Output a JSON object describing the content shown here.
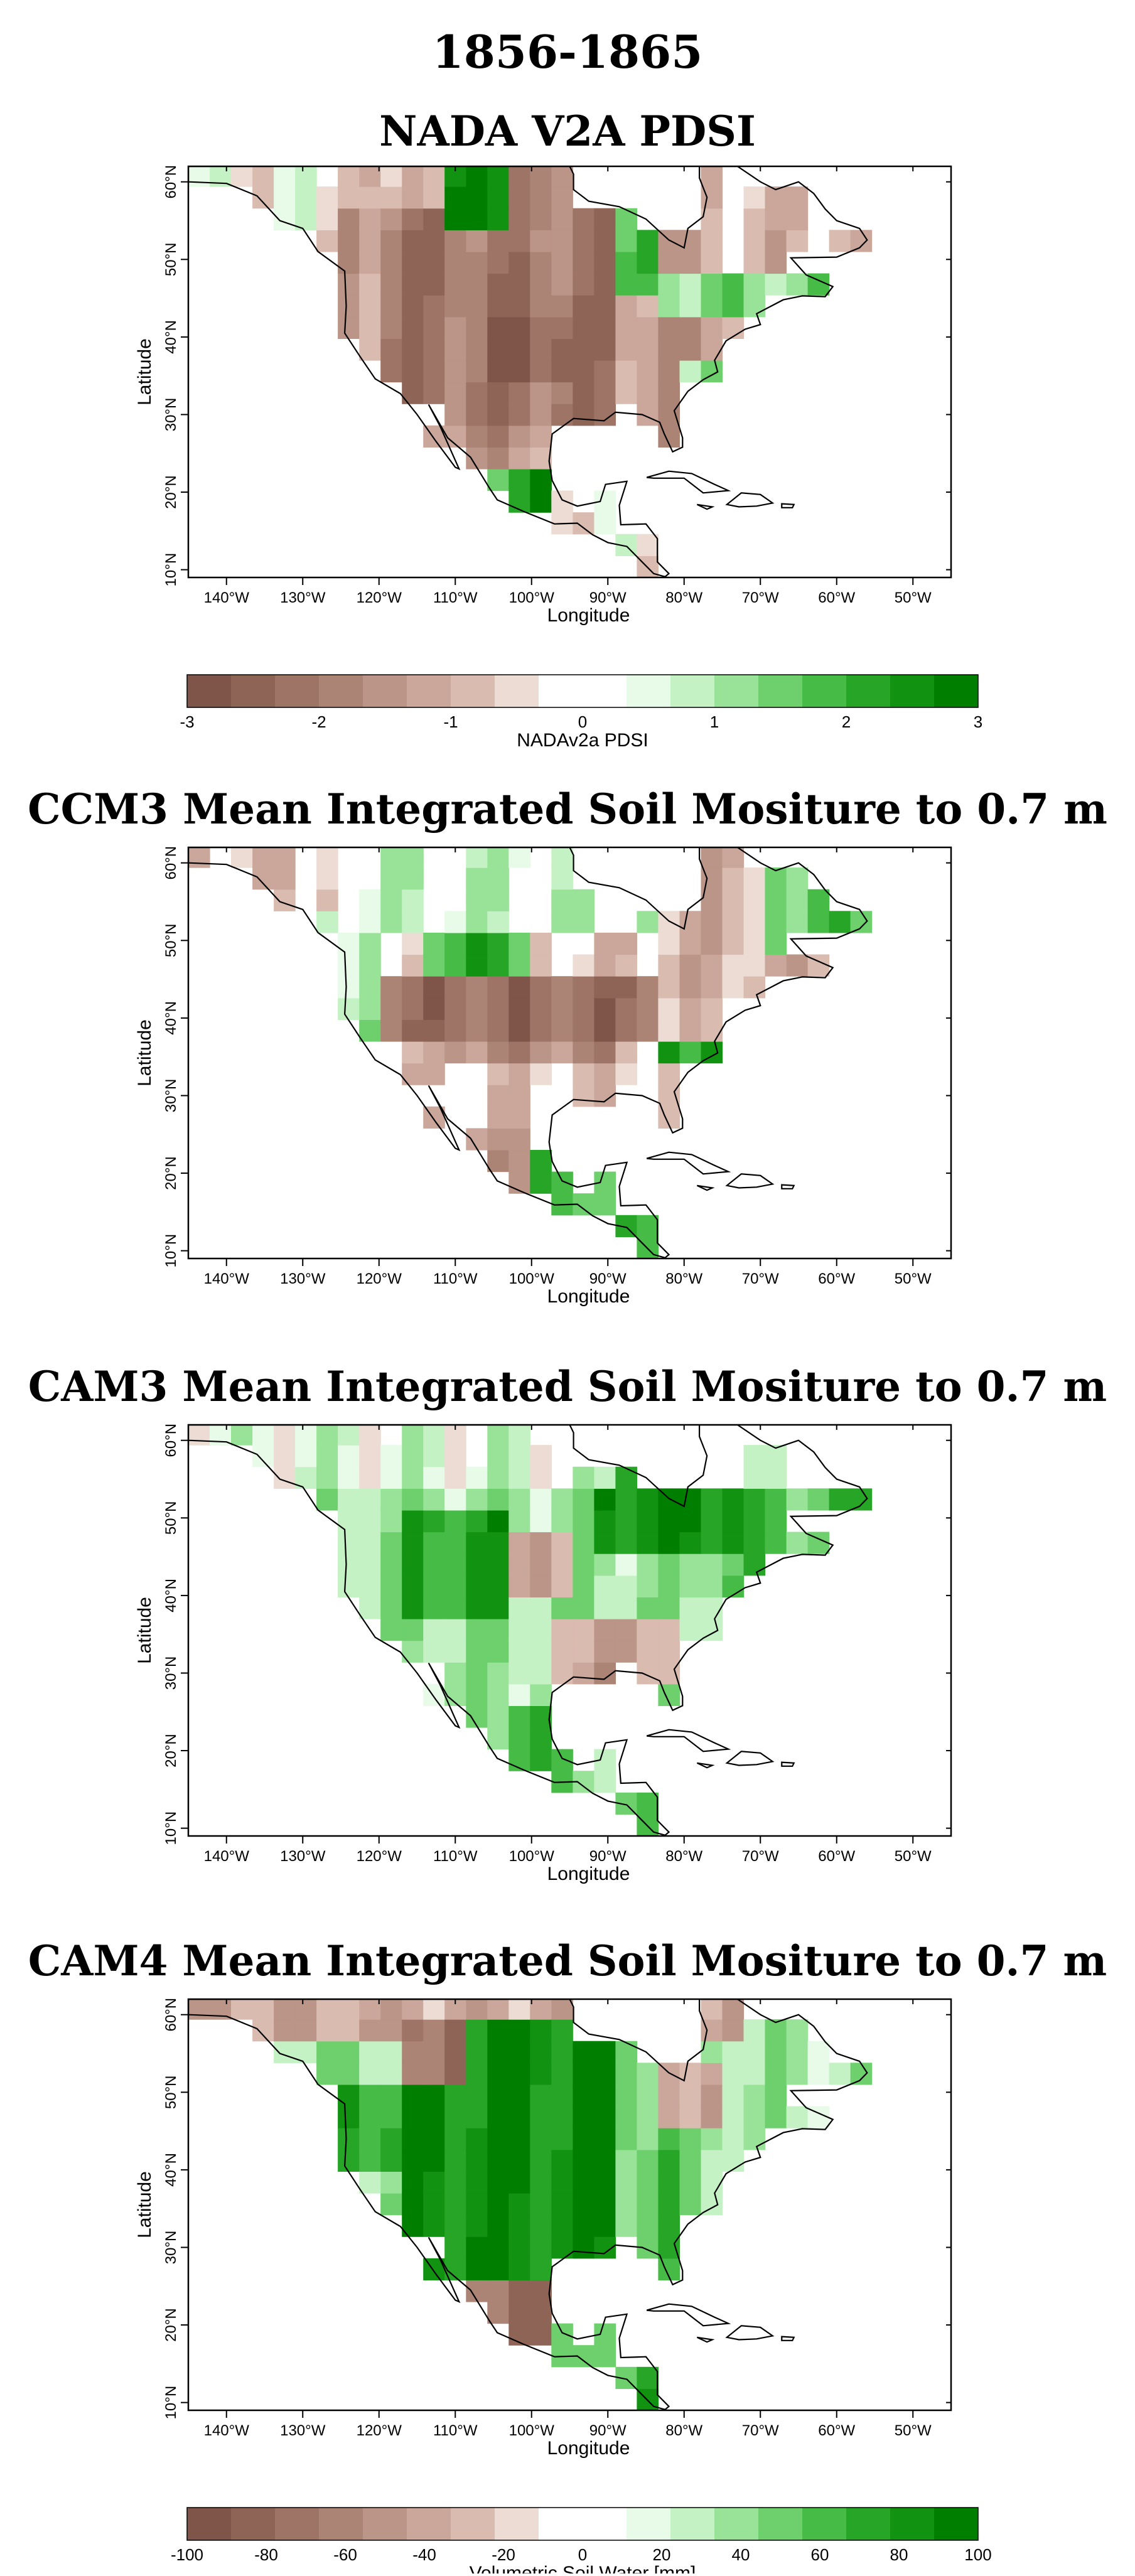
{
  "figure_title": "1856-1865",
  "panels": [
    {
      "title": "NADA V2A PDSI",
      "pattern": "nada"
    },
    {
      "title": "CCM3 Mean Integrated Soil Mositure to 0.7 m",
      "pattern": "ccm3"
    },
    {
      "title": "CAM3 Mean Integrated Soil Mositure to 0.7 m",
      "pattern": "cam3"
    },
    {
      "title": "CAM4 Mean Integrated Soil Mositure to 0.7 m",
      "pattern": "cam4"
    }
  ],
  "axes": {
    "xlabel": "Longitude",
    "ylabel": "Latitude",
    "xticks": [
      "140°W",
      "130°W",
      "120°W",
      "110°W",
      "100°W",
      "90°W",
      "80°W",
      "70°W",
      "60°W",
      "50°W"
    ],
    "yticks": [
      "10°N",
      "20°N",
      "30°N",
      "40°N",
      "50°N",
      "60°N"
    ],
    "lon_range": [
      -145,
      -45
    ],
    "lat_range": [
      9,
      62
    ]
  },
  "colorbars": [
    {
      "label": "NADAv2a PDSI",
      "ticks": [
        "-3",
        "-2",
        "-1",
        "0",
        "1",
        "2",
        "3"
      ],
      "range": [
        -3,
        3
      ]
    },
    {
      "label": "Volumetric Soil Water [mm]",
      "ticks": [
        "-100",
        "-80",
        "-60",
        "-40",
        "-20",
        "0",
        "20",
        "40",
        "60",
        "80",
        "100"
      ],
      "range": [
        -100,
        100
      ]
    }
  ],
  "colors": {
    "dry": [
      "#7e5548",
      "#8e6456",
      "#9d7466",
      "#ac8476",
      "#bb9587",
      "#caa79a",
      "#dabbb0",
      "#ecdcd4"
    ],
    "wet": [
      "#e8fae8",
      "#c5f2c5",
      "#98e398",
      "#6dd06d",
      "#46bb46",
      "#27a527",
      "#119311",
      "#007e00"
    ],
    "grid_lines": "#000000"
  }
}
